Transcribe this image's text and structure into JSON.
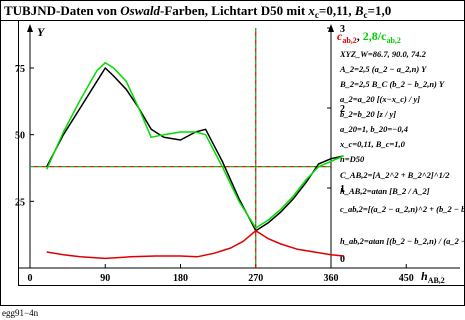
{
  "header": {
    "title_prefix": "TUBJND-Daten von ",
    "title_italic": "Oswald",
    "title_mid": "-Farben, Lichtart D50 mit ",
    "xc_label": "x",
    "xc_sub": "c",
    "xc_eq": "=0,11, ",
    "bc_label": "B",
    "bc_sub": "c",
    "bc_eq": "=1,0"
  },
  "axes": {
    "y_letter": "Y",
    "c_letter": "c",
    "c_sub": "ab,2",
    "c_sep": ", ",
    "green_label": "2,8/c",
    "green_sub": "ab,2",
    "x_label_h": "h",
    "x_label_sub": "AB,2"
  },
  "formulas": [
    "XYZ_W=86.7, 90.0, 74.2",
    "A_2=2,5 (a_2 − a_2,n) Y",
    "B_2=2,5 B_C (b_2 − b_2,n) Y",
    "a_2=a_20 [(x−x_c) / y]",
    "b_2=b_20 [z / y]",
    "a_20=1, b_20=−0,4",
    "x_c=0,11, B_c=1,0",
    "n=D50",
    "C_AB,2=[A_2^2 + B_2^2]^1/2",
    "h_AB,2=atan [B_2 / A_2]",
    "c_ab,2=[(a_2 − a_2,n)^2 + (b_2 − b_2,n)^2]^1/2",
    "h_ab,2=atan [(b_2 − b_2,n) / (a_2 − a_2,n)]"
  ],
  "footer": {
    "code": "egg91−4n"
  },
  "chart_data": {
    "type": "line",
    "xlim": [
      -8,
      485
    ],
    "ylim": [
      0,
      90
    ],
    "x_ticks": [
      0,
      90,
      180,
      270,
      360,
      450
    ],
    "y_ticks": [
      25,
      50,
      75
    ],
    "right_ticks": [
      "0",
      "1",
      "2",
      "3"
    ],
    "grid": false,
    "series": [
      {
        "color": "#000000",
        "x": [
          20,
          40,
          60,
          80,
          90,
          100,
          115,
          130,
          145,
          160,
          180,
          198,
          210,
          230,
          250,
          270,
          285,
          300,
          315,
          330,
          345,
          360,
          375
        ],
        "y": [
          38,
          50,
          60,
          70,
          75,
          72,
          67,
          60,
          52,
          49,
          48,
          51,
          52,
          40,
          26,
          14,
          17,
          21,
          26,
          32,
          39,
          41,
          42
        ]
      },
      {
        "color": "#00dd00",
        "x": [
          20,
          40,
          60,
          80,
          90,
          100,
          115,
          130,
          145,
          160,
          180,
          198,
          210,
          230,
          250,
          270,
          285,
          300,
          315,
          330,
          345,
          360,
          375
        ],
        "y": [
          37,
          51,
          63,
          74,
          77,
          75,
          70,
          60,
          49,
          50,
          51,
          51,
          50,
          38,
          25,
          15,
          18,
          22,
          27,
          33,
          38,
          40,
          42
        ]
      },
      {
        "color": "#dd0000",
        "x": [
          20,
          40,
          60,
          90,
          120,
          150,
          180,
          200,
          220,
          240,
          255,
          270,
          285,
          300,
          320,
          340,
          360,
          375
        ],
        "y": [
          6,
          5,
          4.2,
          3.6,
          4.2,
          4.5,
          4.5,
          4.2,
          5.5,
          7.5,
          10,
          14,
          11,
          9,
          7,
          6,
          5,
          4.5
        ]
      }
    ],
    "reference_lines": [
      {
        "orientation": "horizontal",
        "y": 38,
        "color": "#00aa00",
        "style": "dashed"
      },
      {
        "orientation": "horizontal",
        "y": 38,
        "color": "#dd0000",
        "style": "dashed"
      },
      {
        "orientation": "vertical",
        "x": 270,
        "color": "#00aa00",
        "style": "dashed"
      },
      {
        "orientation": "vertical",
        "x": 270,
        "color": "#dd0000",
        "style": "dashed"
      }
    ]
  }
}
